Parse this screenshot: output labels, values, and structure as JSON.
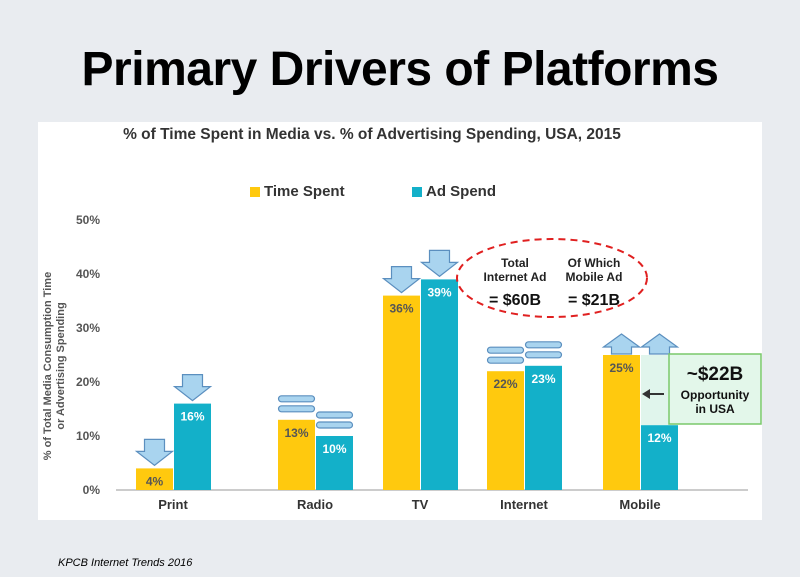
{
  "slide": {
    "title": "Primary Drivers of Platforms",
    "source": "KPCB Internet Trends 2016"
  },
  "chart_data": {
    "type": "bar",
    "title": "% of Time Spent in Media vs. % of Advertising Spending, USA, 2015",
    "ylabel": "% of Total Media Consumption Time or Advertising Spending",
    "ylabel_lines": [
      "% of Total Media Consumption Time",
      "or Advertising Spending"
    ],
    "xlabel": "",
    "ylim": [
      0,
      50
    ],
    "yticks": [
      "0%",
      "10%",
      "20%",
      "30%",
      "40%",
      "50%"
    ],
    "categories": [
      "Print",
      "Radio",
      "TV",
      "Internet",
      "Mobile"
    ],
    "series": [
      {
        "name": "Time Spent",
        "color": "#ffc90e",
        "values": [
          4,
          13,
          36,
          22,
          25
        ]
      },
      {
        "name": "Ad Spend",
        "color": "#13b0c9",
        "values": [
          16,
          10,
          39,
          23,
          12
        ]
      }
    ],
    "trend_markers": {
      "Print": [
        "down",
        "down"
      ],
      "Radio": [
        "flat",
        "flat"
      ],
      "TV": [
        "down",
        "down"
      ],
      "Internet": [
        "flat",
        "flat"
      ],
      "Mobile": [
        "up",
        "up"
      ]
    },
    "legend_position": "top-center",
    "grid": false,
    "opportunity_gap": {
      "category": "Mobile",
      "from_value": 12,
      "to_value": 25,
      "color": "#e0f5ec",
      "label_amount": "~$22B",
      "label_lines": [
        "Opportunity",
        "in USA"
      ]
    },
    "callout": {
      "left_lines": [
        "Total",
        "Internet Ad"
      ],
      "left_amount": "= $60B",
      "right_lines": [
        "Of Which",
        "Mobile Ad"
      ],
      "right_amount": "= $21B",
      "border_color": "#e02020"
    }
  },
  "colors": {
    "arrow_fill": "#a9d4ef",
    "arrow_stroke": "#5b8fbf"
  }
}
